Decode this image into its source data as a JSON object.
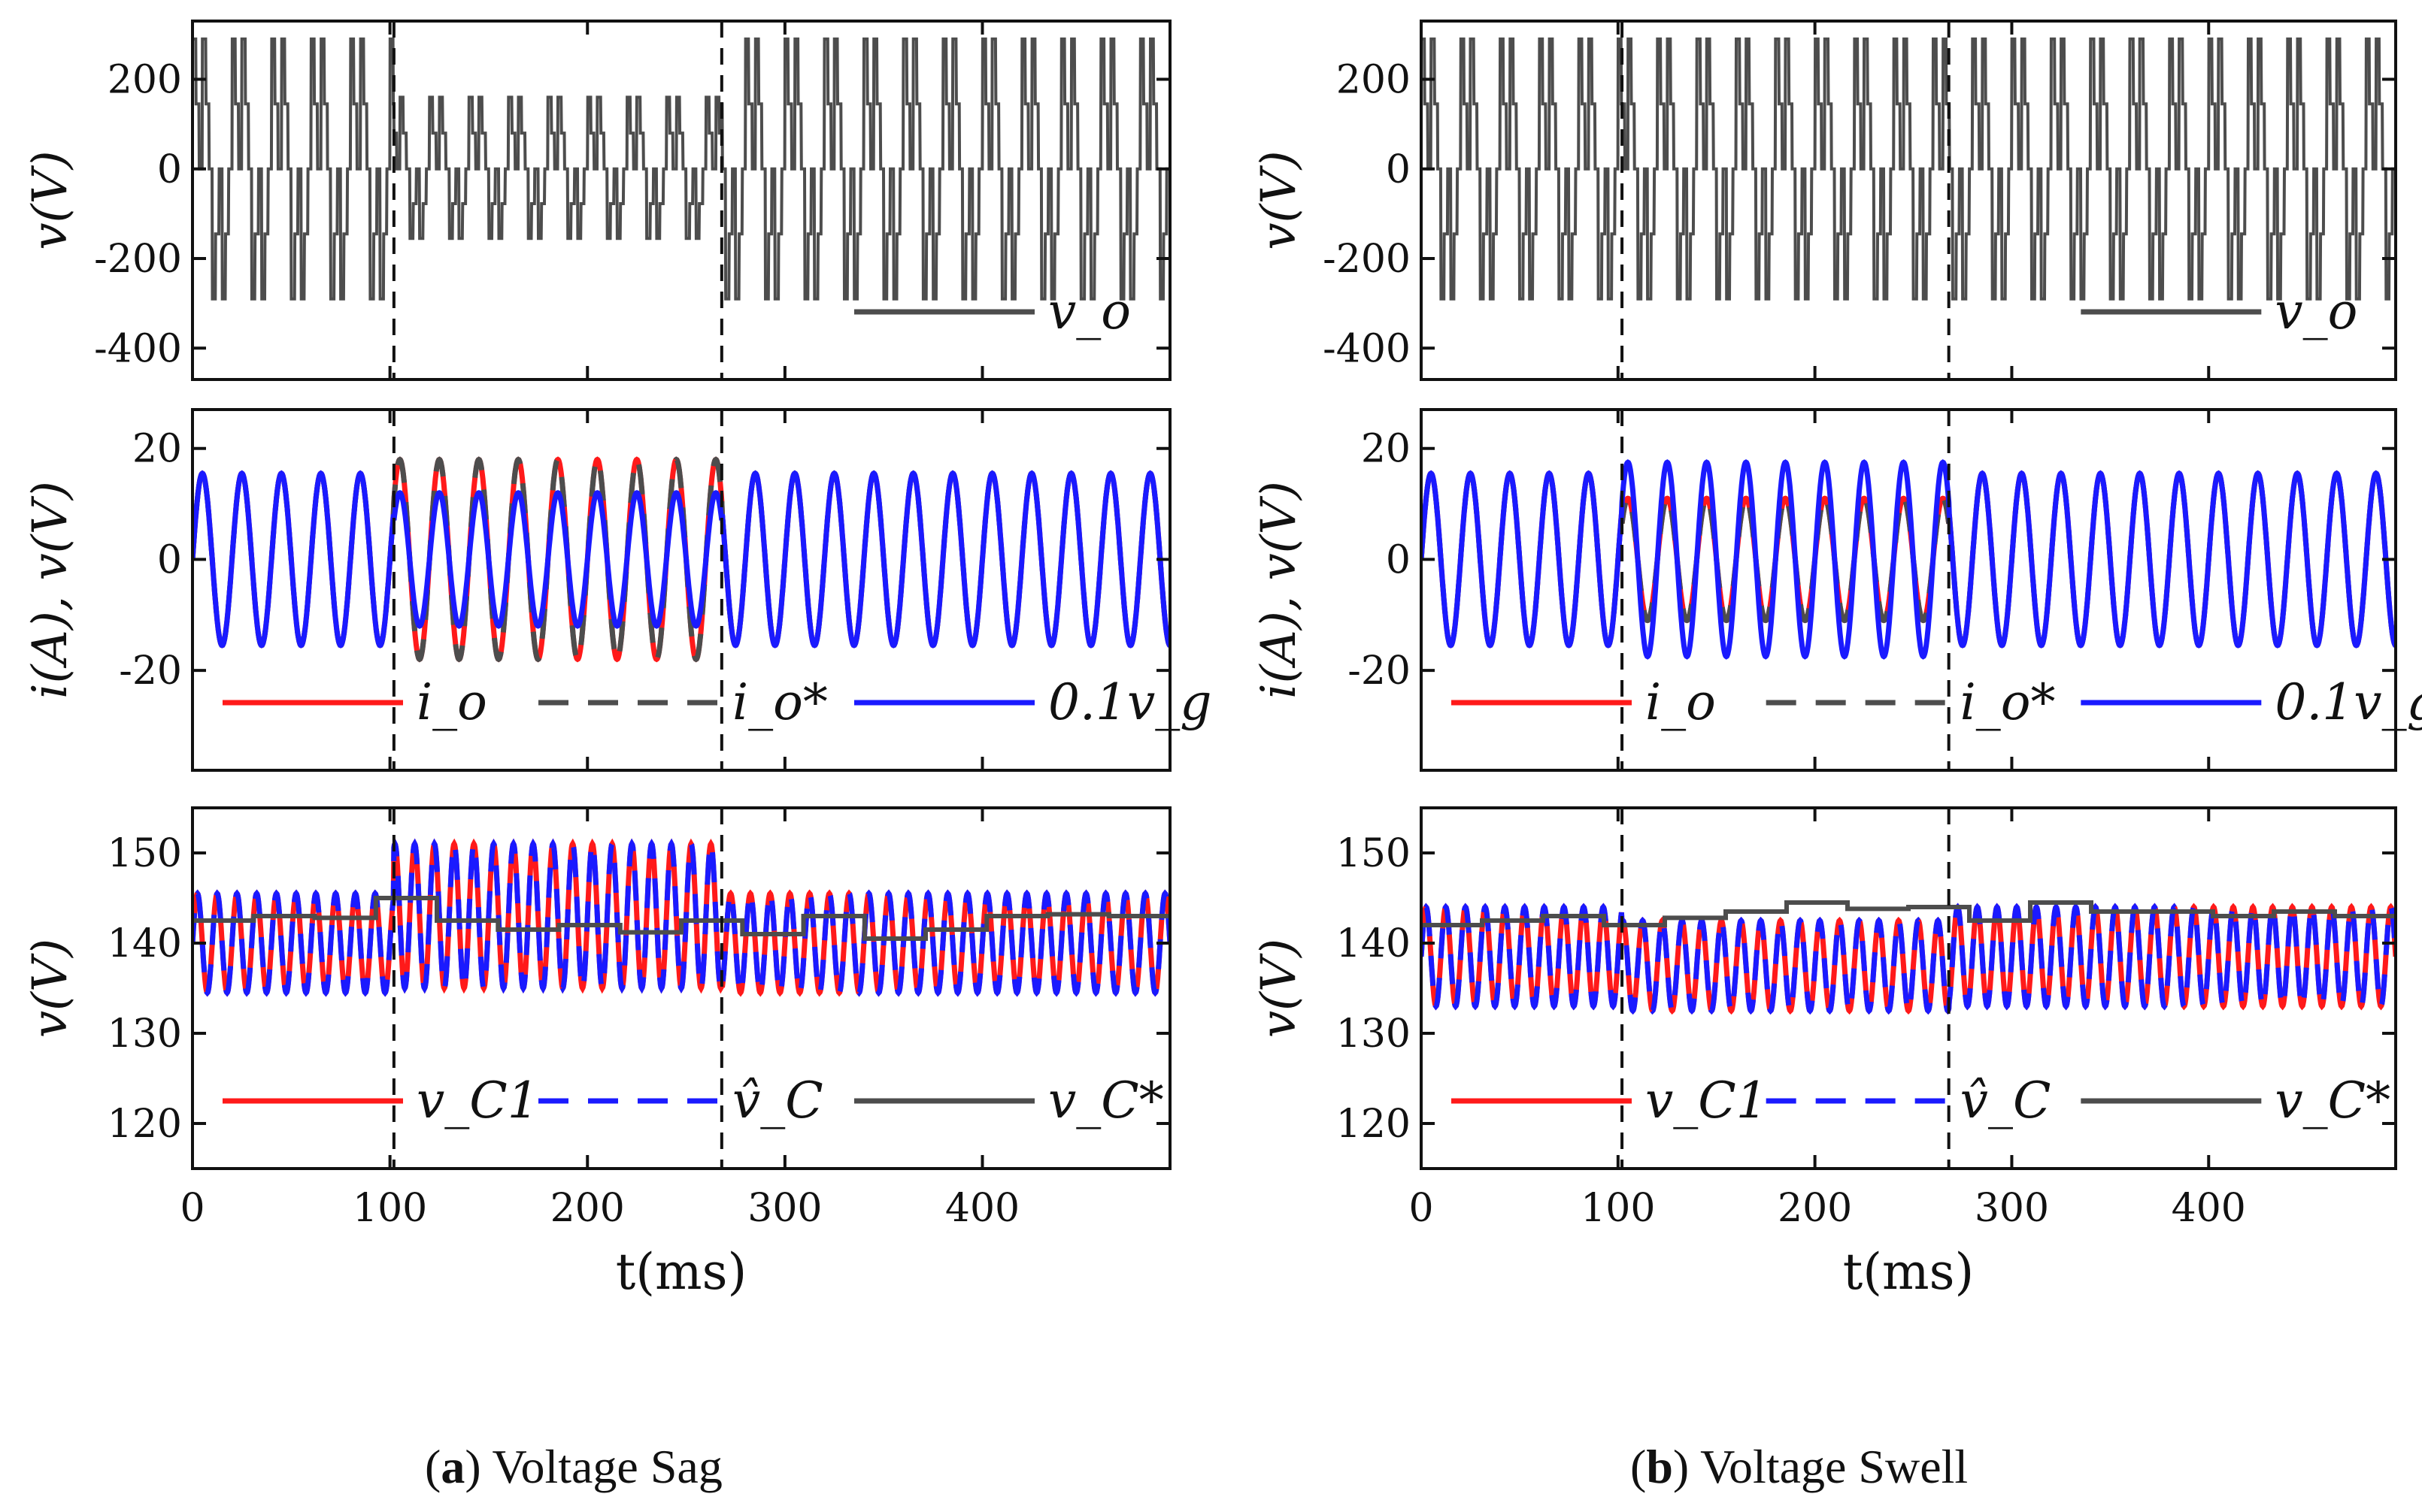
{
  "captions": [
    {
      "letter": "a",
      "text": "Voltage Sag"
    },
    {
      "letter": "b",
      "text": "Voltage Swell"
    }
  ],
  "colors": {
    "vo": "#4d4d4d",
    "io": "#ff1a1a",
    "io_ref": "#4d4d4d",
    "vg": "#1a1aff",
    "vC1": "#ff1a1a",
    "vC_hat": "#1a1aff",
    "vC_ref": "#4d4d4d"
  },
  "chart_data": [
    {
      "type": "line",
      "panel": "a",
      "title": "",
      "xlabel": "t(ms)",
      "xlim": [
        0,
        495
      ],
      "xticks": [
        "0",
        "100",
        "200",
        "300",
        "400"
      ],
      "event_markers_ms": [
        102,
        268
      ],
      "subplots": [
        {
          "id": "a-top",
          "ylabel": "v(V)",
          "ylim": [
            -470,
            330
          ],
          "yticks": [
            "200",
            "0",
            "-200",
            "-400"
          ],
          "series": [
            {
              "name": "v_o",
              "legend": "v_o",
              "kind": "pwm",
              "style": "solid",
              "description_values": {
                "normal_peak_pos": 290,
                "normal_peak_neg": -290,
                "sag_peak_pos": 160,
                "sag_peak_neg": -155,
                "frequency_hz": 50
              }
            }
          ]
        },
        {
          "id": "a-mid",
          "ylabel": "i(A), v(V)",
          "ylim": [
            -38,
            27
          ],
          "yticks": [
            "20",
            "0",
            "-20"
          ],
          "series": [
            {
              "name": "i_o",
              "legend": "i_o",
              "style": "solid",
              "amplitude_normal": 15.5,
              "amplitude_event": 18,
              "frequency_hz": 50
            },
            {
              "name": "i_o*",
              "legend": "i_o*",
              "style": "dashed",
              "amplitude_normal": 15.5,
              "amplitude_event": 18,
              "frequency_hz": 50
            },
            {
              "name": "0.1v_g",
              "legend": "0.1v_g",
              "style": "solid",
              "amplitude_normal": 15.5,
              "amplitude_event": 12,
              "frequency_hz": 50
            }
          ]
        },
        {
          "id": "a-bot",
          "ylabel": "v(V)",
          "ylim": [
            115,
            155
          ],
          "yticks": [
            "150",
            "140",
            "130",
            "120"
          ],
          "series": [
            {
              "name": "v_C1",
              "legend": "v_C1",
              "style": "solid",
              "mean_normal": 140,
              "ripple_normal": 5.5,
              "mean_event": 143,
              "ripple_event": 8,
              "frequency_hz": 100
            },
            {
              "name": "v_C hat",
              "legend": "v̂_C",
              "style": "dashed",
              "mean_normal": 140,
              "ripple_normal": 5.5,
              "mean_event": 143,
              "ripple_event": 8,
              "frequency_hz": 100
            },
            {
              "name": "v_C*",
              "legend": "v_C*",
              "style": "solid",
              "step_values": [
                142.5,
                143,
                142.8,
                145,
                142.5,
                141.5,
                142,
                141.2,
                142.5,
                141,
                143,
                140.5,
                141.5,
                143,
                143.2,
                143
              ]
            }
          ]
        }
      ]
    },
    {
      "type": "line",
      "panel": "b",
      "title": "",
      "xlabel": "t(ms)",
      "xlim": [
        0,
        495
      ],
      "xticks": [
        "0",
        "100",
        "200",
        "300",
        "400"
      ],
      "event_markers_ms": [
        102,
        268
      ],
      "subplots": [
        {
          "id": "b-top",
          "ylabel": "v(V)",
          "ylim": [
            -470,
            330
          ],
          "yticks": [
            "200",
            "0",
            "-200",
            "-400"
          ],
          "series": [
            {
              "name": "v_o",
              "legend": "v_o",
              "kind": "pwm",
              "style": "solid",
              "description_values": {
                "normal_peak_pos": 290,
                "normal_peak_neg": -290,
                "sag_peak_pos": 290,
                "sag_peak_neg": -290,
                "frequency_hz": 50
              }
            }
          ]
        },
        {
          "id": "b-mid",
          "ylabel": "i(A), v(V)",
          "ylim": [
            -38,
            27
          ],
          "yticks": [
            "20",
            "0",
            "-20"
          ],
          "series": [
            {
              "name": "i_o",
              "legend": "i_o",
              "style": "solid",
              "amplitude_normal": 15.5,
              "amplitude_event": 11,
              "frequency_hz": 50
            },
            {
              "name": "i_o*",
              "legend": "i_o*",
              "style": "dashed",
              "amplitude_normal": 15.5,
              "amplitude_event": 11,
              "frequency_hz": 50
            },
            {
              "name": "0.1v_g",
              "legend": "0.1v_g",
              "style": "solid",
              "amplitude_normal": 15.5,
              "amplitude_event": 17.5,
              "frequency_hz": 50
            }
          ]
        },
        {
          "id": "b-bot",
          "ylabel": "v(V)",
          "ylim": [
            115,
            155
          ],
          "yticks": [
            "150",
            "140",
            "130",
            "120"
          ],
          "series": [
            {
              "name": "v_C1",
              "legend": "v_C1",
              "style": "solid",
              "mean_normal": 138.5,
              "ripple_normal": 5.5,
              "mean_event": 137.5,
              "ripple_event": 5,
              "frequency_hz": 100
            },
            {
              "name": "v_C hat",
              "legend": "v̂_C",
              "style": "dashed",
              "mean_normal": 138.5,
              "ripple_normal": 5.5,
              "mean_event": 137.5,
              "ripple_event": 5,
              "frequency_hz": 100
            },
            {
              "name": "v_C*",
              "legend": "v_C*",
              "style": "solid",
              "step_values": [
                142,
                142.5,
                143,
                142,
                142.8,
                143.5,
                144.5,
                143.8,
                144,
                142.5,
                144.5,
                143.5,
                143.5,
                143,
                143.5,
                143
              ]
            }
          ]
        }
      ]
    }
  ]
}
